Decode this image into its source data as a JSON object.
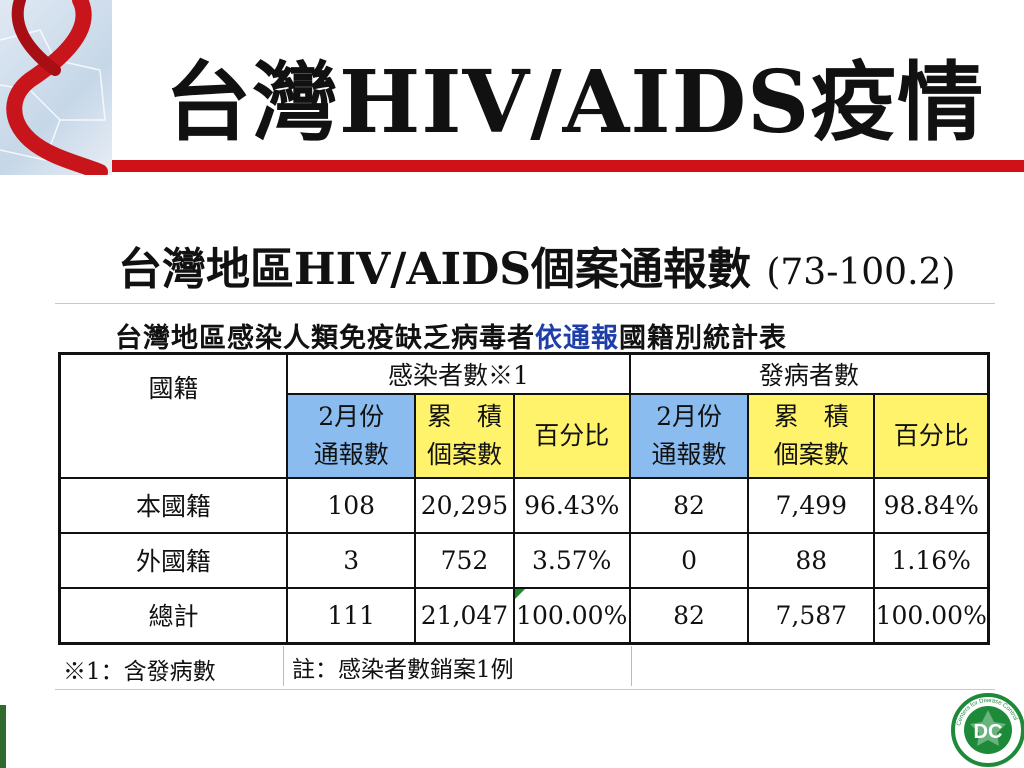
{
  "slide": {
    "title": "台灣HIV/AIDS疫情",
    "subtitle": "台灣地區HIV/AIDS個案通報數",
    "subtitle_range": "(73-100.2)"
  },
  "table": {
    "caption_pre": "台灣地區感染人類免疫缺乏病毒者",
    "caption_highlight": "依通報",
    "caption_post": "國籍別統計表",
    "header_nationality": "國籍",
    "group_infected": "感染者數※1",
    "group_onset": "發病者數",
    "col_month_line1": "2月份",
    "col_month_line2": "通報數",
    "col_cum_line1": "累　積",
    "col_cum_line2": "個案數",
    "col_pct": "百分比",
    "rows": [
      {
        "label": "本國籍",
        "inf_month": "108",
        "inf_cum": "20,295",
        "inf_pct": "96.43%",
        "ons_month": "82",
        "ons_cum": "7,499",
        "ons_pct": "98.84%"
      },
      {
        "label": "外國籍",
        "inf_month": "3",
        "inf_cum": "752",
        "inf_pct": "3.57%",
        "ons_month": "0",
        "ons_cum": "88",
        "ons_pct": "1.16%"
      },
      {
        "label": "總計",
        "inf_month": "111",
        "inf_cum": "21,047",
        "inf_pct": "100.00%",
        "ons_month": "82",
        "ons_cum": "7,587",
        "ons_pct": "100.00%"
      }
    ],
    "note1": "※1：含發病數",
    "note2": "註：感染者數銷案1例"
  },
  "colors": {
    "accent_red": "#d01218",
    "header_blue": "#8bbcf0",
    "header_yellow": "#fff36b",
    "caption_highlight": "#1f3fa8"
  },
  "logo": {
    "text": "Centers for Disease Control",
    "initials": "DC"
  }
}
